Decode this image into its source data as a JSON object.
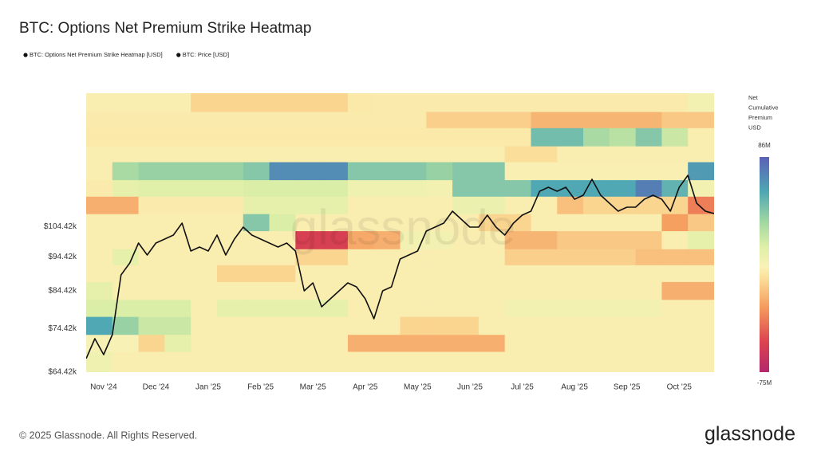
{
  "chart_data": {
    "type": "heatmap",
    "title": "BTC: Options Net Premium Strike Heatmap",
    "categories": [
      null,
      null,
      "Nov '24",
      null,
      null,
      null,
      null,
      null,
      "Dec '24",
      null,
      null,
      null,
      null,
      null,
      "Jan '25",
      null,
      null,
      null,
      null,
      null,
      "Feb '25",
      null,
      null,
      null,
      null,
      null,
      "Mar '25",
      null,
      null,
      null,
      null,
      null,
      "Apr '25",
      null,
      null,
      null,
      null,
      null,
      "May '25",
      null,
      null,
      null,
      null,
      null,
      "Jun '25",
      null,
      null,
      null,
      null,
      null,
      "Jul '25",
      null,
      null,
      null,
      null,
      null,
      "Aug '25",
      null,
      null,
      null,
      null,
      null,
      "Sep '25",
      null,
      null,
      null,
      null,
      null,
      "Oct '25",
      null,
      null,
      null,
      null
    ],
    "ylim": [
      64420,
      162600
    ],
    "yscale": "log",
    "yticks": [
      {
        "value": 64420,
        "label": "$64.42k"
      },
      {
        "value": 74420,
        "label": "$74.42k"
      },
      {
        "value": 84420,
        "label": "$84.42k"
      },
      {
        "value": 94420,
        "label": "$94.42k"
      },
      {
        "value": 104420,
        "label": "$104.42k"
      }
    ],
    "heatmap": {
      "name": "BTC: Options Net Premium Strike Heatmap [USD]",
      "color": "#111111",
      "strikes": [
        64000,
        69000,
        73000,
        77500,
        82000,
        87000,
        92000,
        97000,
        103000,
        109000,
        115500,
        122000,
        129500,
        136500,
        145000,
        153000,
        163000
      ],
      "values": [
        [
          10000000,
          2000000,
          2000000,
          2000000,
          2000000,
          2000000,
          2000000,
          2000000,
          2000000,
          2000000,
          2000000,
          2000000,
          2000000,
          2000000,
          2000000,
          2000000,
          2000000,
          2000000,
          2000000,
          2000000,
          2000000,
          2000000,
          2000000,
          2000000
        ],
        [
          5000000,
          5000000,
          -8000000,
          15000000,
          2000000,
          2000000,
          2000000,
          2000000,
          2000000,
          2000000,
          -20000000,
          -20000000,
          -20000000,
          -20000000,
          -20000000,
          -20000000,
          2000000,
          2000000,
          2000000,
          2000000,
          2000000,
          2000000,
          2000000,
          2000000
        ],
        [
          60000000,
          40000000,
          25000000,
          25000000,
          2000000,
          2000000,
          2000000,
          2000000,
          2000000,
          2000000,
          2000000,
          2000000,
          -8000000,
          -8000000,
          -8000000,
          2000000,
          2000000,
          2000000,
          2000000,
          2000000,
          2000000,
          2000000,
          2000000,
          2000000
        ],
        [
          20000000,
          20000000,
          20000000,
          20000000,
          2000000,
          15000000,
          15000000,
          15000000,
          15000000,
          15000000,
          2000000,
          2000000,
          2000000,
          2000000,
          2000000,
          2000000,
          8000000,
          8000000,
          8000000,
          8000000,
          8000000,
          8000000,
          2000000,
          2000000
        ],
        [
          15000000,
          2000000,
          2000000,
          2000000,
          2000000,
          2000000,
          2000000,
          2000000,
          2000000,
          2000000,
          2000000,
          2000000,
          2000000,
          2000000,
          2000000,
          2000000,
          2000000,
          2000000,
          2000000,
          2000000,
          2000000,
          2000000,
          -20000000,
          -20000000
        ],
        [
          2000000,
          2000000,
          2000000,
          2000000,
          2000000,
          -8000000,
          -8000000,
          -8000000,
          2000000,
          2000000,
          2000000,
          2000000,
          2000000,
          2000000,
          2000000,
          2000000,
          2000000,
          2000000,
          2000000,
          2000000,
          2000000,
          2000000,
          2000000,
          2000000
        ],
        [
          2000000,
          15000000,
          2000000,
          2000000,
          2000000,
          2000000,
          2000000,
          2000000,
          -8000000,
          -8000000,
          2000000,
          2000000,
          2000000,
          2000000,
          2000000,
          2000000,
          -10000000,
          -10000000,
          -10000000,
          -10000000,
          -10000000,
          -15000000,
          -15000000,
          -15000000
        ],
        [
          2000000,
          2000000,
          2000000,
          2000000,
          2000000,
          2000000,
          2000000,
          2000000,
          -55000000,
          -55000000,
          -22000000,
          -20000000,
          8000000,
          8000000,
          2000000,
          2000000,
          -18000000,
          -18000000,
          -12000000,
          -12000000,
          -12000000,
          -12000000,
          2000000,
          15000000
        ],
        [
          2000000,
          2000000,
          2000000,
          2000000,
          2000000,
          2000000,
          45000000,
          20000000,
          2000000,
          2000000,
          2000000,
          2000000,
          2000000,
          2000000,
          2000000,
          -8000000,
          -8000000,
          2000000,
          2000000,
          2000000,
          2000000,
          2000000,
          -25000000,
          -12000000
        ],
        [
          -20000000,
          -20000000,
          1000000,
          1000000,
          1000000,
          1000000,
          15000000,
          15000000,
          15000000,
          15000000,
          2000000,
          2000000,
          2000000,
          2000000,
          12000000,
          12000000,
          2000000,
          2000000,
          -15000000,
          -8000000,
          -8000000,
          -8000000,
          -8000000,
          -35000000
        ],
        [
          1000000,
          15000000,
          18000000,
          18000000,
          18000000,
          18000000,
          20000000,
          20000000,
          20000000,
          20000000,
          10000000,
          10000000,
          10000000,
          8000000,
          45000000,
          45000000,
          45000000,
          60000000,
          60000000,
          60000000,
          60000000,
          75000000,
          55000000,
          8000000
        ],
        [
          2000000,
          35000000,
          40000000,
          40000000,
          40000000,
          40000000,
          45000000,
          70000000,
          70000000,
          70000000,
          45000000,
          45000000,
          45000000,
          40000000,
          45000000,
          45000000,
          3000000,
          3000000,
          3000000,
          3000000,
          3000000,
          3000000,
          3000000,
          65000000
        ],
        [
          2000000,
          2000000,
          2000000,
          2000000,
          2000000,
          2000000,
          2000000,
          2000000,
          2000000,
          2000000,
          2000000,
          2000000,
          2000000,
          2000000,
          2000000,
          2000000,
          -5000000,
          -5000000,
          2000000,
          2000000,
          2000000,
          2000000,
          2000000,
          2000000
        ],
        [
          0,
          0,
          0,
          0,
          0,
          0,
          0,
          0,
          0,
          0,
          0,
          0,
          0,
          0,
          0,
          0,
          0,
          50000000,
          50000000,
          35000000,
          30000000,
          45000000,
          25000000,
          2000000
        ],
        [
          1000000,
          1000000,
          1000000,
          1000000,
          1000000,
          1000000,
          1000000,
          1000000,
          1000000,
          1000000,
          1000000,
          1000000,
          1000000,
          -10000000,
          -10000000,
          -10000000,
          -10000000,
          -18000000,
          -18000000,
          -18000000,
          -18000000,
          -18000000,
          -12000000,
          -12000000
        ],
        [
          2000000,
          2000000,
          2000000,
          2000000,
          -8000000,
          -8000000,
          -8000000,
          -8000000,
          -8000000,
          -8000000,
          0,
          1000000,
          1000000,
          1000000,
          1000000,
          1000000,
          1000000,
          1000000,
          1000000,
          1000000,
          1000000,
          1000000,
          1000000,
          8000000
        ]
      ],
      "zlim": [
        -75000000,
        86000000
      ],
      "zticks": [
        {
          "value": 86000000,
          "label": "86M"
        },
        {
          "value": -75000000,
          "label": "-75M"
        }
      ],
      "colorbar_title": [
        "Net",
        "Cumulative",
        "Premium",
        "USD"
      ]
    },
    "series": [
      {
        "name": "BTC: Price [USD]",
        "type": "line",
        "color": "#111111",
        "values": [
          67380,
          71990,
          68280,
          72950,
          88960,
          92560,
          98890,
          95050,
          98890,
          100210,
          101540,
          105650,
          96310,
          97590,
          96310,
          101540,
          95050,
          100210,
          104260,
          101540,
          100210,
          98890,
          97590,
          98890,
          96310,
          84370,
          86640,
          80020,
          82170,
          84370,
          86640,
          85500,
          82170,
          76910,
          84370,
          85500,
          93800,
          95050,
          96310,
          102900,
          104260,
          105650,
          109930,
          107060,
          104260,
          104260,
          108480,
          104260,
          101540,
          105650,
          108480,
          109930,
          117450,
          119010,
          117450,
          119010,
          114380,
          115900,
          122190,
          115900,
          112880,
          109930,
          111390,
          111390,
          114380,
          115900,
          114380,
          109930,
          119010,
          123820,
          112880,
          109930,
          109060
        ]
      }
    ]
  },
  "watermark": "glassnode",
  "footer": {
    "copyright": "© 2025 Glassnode. All Rights Reserved.",
    "logo": "glassnode"
  }
}
